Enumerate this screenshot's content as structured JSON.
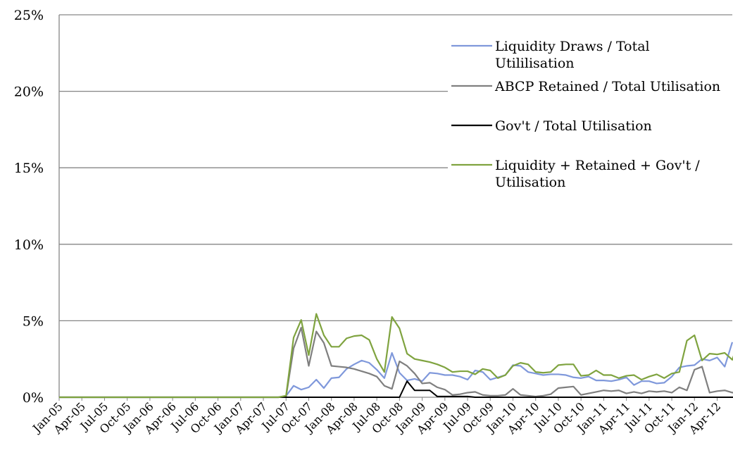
{
  "chart_data": {
    "type": "line",
    "title": "",
    "xlabel": "",
    "ylabel": "",
    "ylim": [
      0,
      0.25
    ],
    "y_ticks": [
      "0%",
      "5%",
      "10%",
      "15%",
      "20%",
      "25%"
    ],
    "y_tick_values": [
      0,
      0.05,
      0.1,
      0.15,
      0.2,
      0.25
    ],
    "grid": "horizontal",
    "legend_placement": "right",
    "x_start": "2005-01",
    "x_interval_months": 1,
    "x_ticks": [
      "Jan-05",
      "Apr-05",
      "Jul-05",
      "Oct-05",
      "Jan-06",
      "Apr-06",
      "Jul-06",
      "Oct-06",
      "Jan-07",
      "Apr-07",
      "Jul-07",
      "Oct-07",
      "Jan-08",
      "Apr-08",
      "Jul-08",
      "Oct-08",
      "Jan-09",
      "Apr-09",
      "Jul-09",
      "Oct-09",
      "Jan-10",
      "Apr-10",
      "Jul-10",
      "Oct-10",
      "Jan-11",
      "Apr-11",
      "Jul-11",
      "Oct-11",
      "Jan-12",
      "Apr-12"
    ],
    "series": [
      {
        "name": "Liquidity Draws / Total Utililisation",
        "color": "#7f98db",
        "values": [
          0,
          0,
          0,
          0,
          0,
          0,
          0,
          0,
          0,
          0,
          0,
          0,
          0,
          0,
          0,
          0,
          0,
          0,
          0,
          0,
          0,
          0,
          0,
          0,
          0,
          0,
          0,
          0,
          0,
          0,
          0.0008,
          0.0075,
          0.005,
          0.0065,
          0.0115,
          0.006,
          0.0125,
          0.013,
          0.0185,
          0.0215,
          0.024,
          0.0225,
          0.018,
          0.0125,
          0.029,
          0.016,
          0.011,
          0.012,
          0.0105,
          0.016,
          0.0155,
          0.0145,
          0.0145,
          0.0135,
          0.0115,
          0.0175,
          0.0165,
          0.0115,
          0.013,
          0.0145,
          0.021,
          0.0205,
          0.0165,
          0.0155,
          0.0145,
          0.015,
          0.015,
          0.0145,
          0.013,
          0.0125,
          0.0135,
          0.011,
          0.011,
          0.0105,
          0.0115,
          0.013,
          0.008,
          0.0105,
          0.0105,
          0.009,
          0.0095,
          0.0135,
          0.0195,
          0.0205,
          0.021,
          0.025,
          0.024,
          0.026,
          0.02,
          0.036
        ]
      },
      {
        "name": "ABCP Retained / Total Utilisation",
        "color": "#7f7f7f",
        "values": [
          0,
          0,
          0,
          0,
          0,
          0,
          0,
          0,
          0,
          0,
          0,
          0,
          0,
          0,
          0,
          0,
          0,
          0,
          0,
          0,
          0,
          0,
          0,
          0,
          0,
          0,
          0,
          0,
          0,
          0,
          0.0005,
          0.032,
          0.0455,
          0.0205,
          0.043,
          0.0355,
          0.0205,
          0.02,
          0.0195,
          0.0185,
          0.017,
          0.0155,
          0.0135,
          0.0075,
          0.0055,
          0.0235,
          0.0205,
          0.0155,
          0.009,
          0.0095,
          0.0065,
          0.005,
          0.0015,
          0.002,
          0.003,
          0.0035,
          0.0015,
          0.001,
          0.001,
          0.0015,
          0.0055,
          0.0015,
          0.001,
          0.0005,
          0.001,
          0.002,
          0.006,
          0.0065,
          0.007,
          0.0015,
          0.0025,
          0.0035,
          0.0045,
          0.004,
          0.0045,
          0.0025,
          0.0035,
          0.0025,
          0.004,
          0.0035,
          0.004,
          0.003,
          0.0065,
          0.0045,
          0.018,
          0.02,
          0.003,
          0.004,
          0.0045,
          0.003,
          0.0035,
          0.0045
        ]
      },
      {
        "name": "Gov't / Total Utilisation",
        "color": "#000000",
        "values": [
          0,
          0,
          0,
          0,
          0,
          0,
          0,
          0,
          0,
          0,
          0,
          0,
          0,
          0,
          0,
          0,
          0,
          0,
          0,
          0,
          0,
          0,
          0,
          0,
          0,
          0,
          0,
          0,
          0,
          0,
          0,
          0,
          0,
          0,
          0,
          0,
          0,
          0,
          0,
          0,
          0,
          0,
          0,
          0,
          0,
          0,
          0.0105,
          0.0045,
          0.0045,
          0.0045,
          0.0005,
          0.0005,
          0.0005,
          0.0005,
          0.0005,
          0,
          0,
          0,
          0,
          0,
          0,
          0,
          0,
          0,
          0,
          0,
          0,
          0,
          0,
          0,
          0,
          0,
          0,
          0,
          0,
          0,
          0,
          0,
          0,
          0,
          0,
          0,
          0,
          0,
          0,
          0,
          0,
          0,
          0,
          0,
          0
        ]
      },
      {
        "name": "Liquidity + Retained + Gov't / Utilisation",
        "color": "#7fa33f",
        "values": [
          0,
          0,
          0,
          0,
          0,
          0,
          0,
          0,
          0,
          0,
          0,
          0,
          0,
          0,
          0,
          0,
          0,
          0,
          0,
          0,
          0,
          0,
          0,
          0,
          0,
          0,
          0,
          0,
          0,
          0,
          0.001,
          0.039,
          0.0505,
          0.0275,
          0.0545,
          0.0405,
          0.033,
          0.033,
          0.0385,
          0.04,
          0.0405,
          0.0375,
          0.025,
          0.0165,
          0.0525,
          0.045,
          0.0285,
          0.025,
          0.024,
          0.023,
          0.0215,
          0.0195,
          0.0165,
          0.017,
          0.017,
          0.015,
          0.0185,
          0.0175,
          0.0125,
          0.0145,
          0.0205,
          0.0225,
          0.0215,
          0.0165,
          0.016,
          0.0165,
          0.021,
          0.0215,
          0.0215,
          0.014,
          0.0145,
          0.0175,
          0.0145,
          0.0145,
          0.0125,
          0.014,
          0.0145,
          0.0115,
          0.0135,
          0.015,
          0.0125,
          0.0155,
          0.0165,
          0.037,
          0.0405,
          0.024,
          0.0285,
          0.028,
          0.029,
          0.0245,
          0.0385
        ]
      }
    ]
  }
}
